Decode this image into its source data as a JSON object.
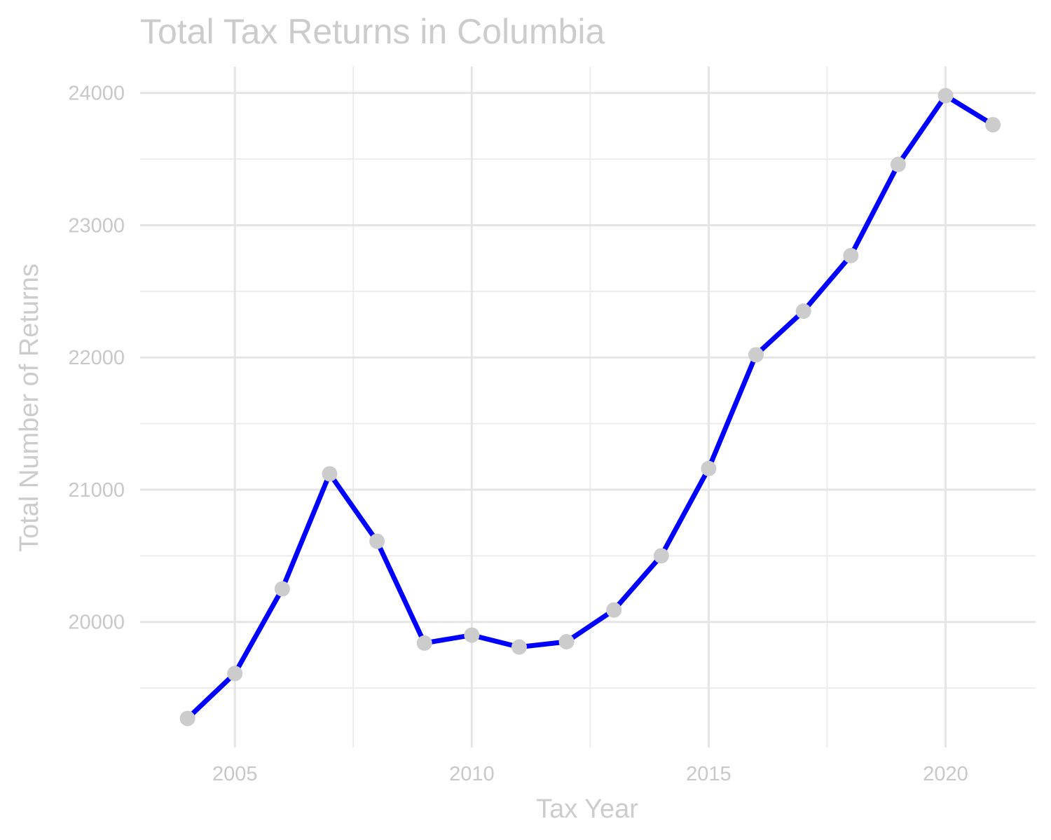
{
  "chart_data": {
    "type": "line",
    "title": "Total Tax Returns in Columbia",
    "xlabel": "Tax Year",
    "ylabel": "Total Number of Returns",
    "x": [
      2004,
      2005,
      2006,
      2007,
      2008,
      2009,
      2010,
      2011,
      2012,
      2013,
      2014,
      2015,
      2016,
      2017,
      2018,
      2019,
      2020,
      2021
    ],
    "series": [
      {
        "values": [
          19270,
          19610,
          20250,
          21120,
          20610,
          19840,
          19900,
          19810,
          19850,
          20090,
          20500,
          21160,
          22020,
          22350,
          22770,
          23460,
          23980,
          23760
        ]
      }
    ],
    "xticks": [
      "2005",
      "2010",
      "2015",
      "2020"
    ],
    "yticks": [
      "20000",
      "21000",
      "22000",
      "23000",
      "24000"
    ],
    "xlim": [
      2003.0,
      2021.9
    ],
    "ylim": [
      19050,
      24200
    ],
    "grid": true,
    "line_color": "#0000ff",
    "point_color": "#cccccc"
  }
}
